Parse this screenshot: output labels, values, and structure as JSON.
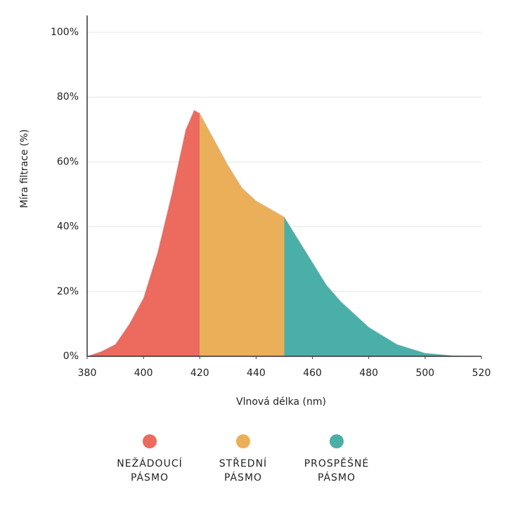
{
  "chart_data": {
    "type": "area",
    "x_label": "Vlnová délka (nm)",
    "y_label": "Míra filtrace (%)",
    "x": [
      380,
      385,
      390,
      395,
      400,
      405,
      410,
      415,
      418,
      420,
      425,
      430,
      435,
      440,
      445,
      450,
      455,
      460,
      465,
      470,
      480,
      490,
      500,
      510,
      520
    ],
    "values": [
      0,
      1.5,
      3.7,
      10,
      18,
      32,
      50,
      70,
      76,
      75,
      67,
      59,
      52,
      48,
      45.5,
      43,
      36,
      29,
      22,
      17,
      9,
      3.7,
      1,
      0.2,
      0
    ],
    "bands": [
      {
        "name": "NEŽÁDOUCÍ\nPÁSMO",
        "color": "#ec6a5e",
        "from": 380,
        "to": 420
      },
      {
        "name": "STŘEDNÍ\nPÁSMO",
        "color": "#ebaf59",
        "from": 420,
        "to": 450
      },
      {
        "name": "PROSPĚŠNÉ\nPÁSMO",
        "color": "#4aafa7",
        "from": 450,
        "to": 520
      }
    ],
    "xlim": [
      380,
      520
    ],
    "xticks": [
      380,
      400,
      420,
      440,
      460,
      480,
      500,
      520
    ],
    "ylim": [
      0,
      100
    ],
    "yticks": [
      {
        "value": 0,
        "label": "0%"
      },
      {
        "value": 20,
        "label": "20%"
      },
      {
        "value": 40,
        "label": "40%"
      },
      {
        "value": 60,
        "label": "60%"
      },
      {
        "value": 80,
        "label": "80%"
      },
      {
        "value": 100,
        "label": "100%"
      }
    ],
    "grid": true
  }
}
